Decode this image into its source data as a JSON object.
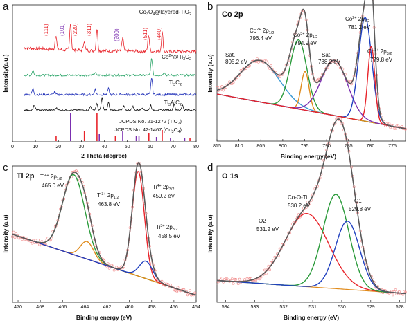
{
  "chart_data": [
    {
      "panel": "a",
      "type": "line",
      "xlabel": "2 Theta (degree)",
      "ylabel": "Intensity(a.u.)",
      "xlim": [
        0,
        80
      ],
      "xticks": [
        "0",
        "10",
        "20",
        "30",
        "40",
        "50",
        "60",
        "70",
        "80"
      ],
      "series": [
        {
          "name": "Co3O4@layered-TiO2",
          "color": "#e8232a",
          "peaks": [
            [
              18.9,
              0.55
            ],
            [
              25.3,
              1
            ],
            [
              31.2,
              0.35
            ],
            [
              36.8,
              0.8
            ],
            [
              48.0,
              0.5
            ],
            [
              59.3,
              0.6
            ],
            [
              65.2,
              0.7
            ]
          ]
        },
        {
          "name": "Co2+@Ti3C2",
          "color": "#2ea66b",
          "peaks": [
            [
              8.9,
              0.3
            ],
            [
              36.0,
              0.15
            ],
            [
              60.6,
              1
            ],
            [
              66.0,
              0.2
            ]
          ]
        },
        {
          "name": "Ti3C2",
          "color": "#1f2fb8",
          "peaks": [
            [
              8.9,
              0.35
            ],
            [
              18.3,
              0.15
            ],
            [
              36.0,
              0.3
            ],
            [
              41.8,
              0.35
            ],
            [
              60.6,
              1
            ]
          ]
        },
        {
          "name": "Ti3AlC2",
          "color": "#111111",
          "peaks": [
            [
              9.5,
              0.4
            ],
            [
              19.2,
              0.2
            ],
            [
              34.0,
              0.3
            ],
            [
              36.7,
              0.5
            ],
            [
              39.0,
              1
            ],
            [
              41.8,
              0.6
            ],
            [
              48.5,
              0.3
            ],
            [
              52.4,
              0.3
            ],
            [
              56.5,
              0.2
            ],
            [
              60.2,
              0.4
            ],
            [
              70.4,
              0.5
            ],
            [
              74.0,
              0.4
            ]
          ]
        }
      ],
      "reference_sticks": [
        {
          "name": "JCPDS No. 21-1272 (TiO2)",
          "color": "#7b2fb0",
          "positions": [
            [
              25.3,
              1
            ],
            [
              37.8,
              0.25
            ],
            [
              48.0,
              0.35
            ],
            [
              53.9,
              0.2
            ],
            [
              55.1,
              0.2
            ],
            [
              62.7,
              0.15
            ],
            [
              68.8,
              0.1
            ],
            [
              75.0,
              0.1
            ]
          ]
        },
        {
          "name": "JCPDS No. 42-1467 (Co3O4)",
          "color": "#e8232a",
          "positions": [
            [
              19.0,
              0.2
            ],
            [
              31.3,
              0.35
            ],
            [
              36.8,
              1
            ],
            [
              44.8,
              0.2
            ],
            [
              59.4,
              0.3
            ],
            [
              65.2,
              0.4
            ],
            [
              77.3,
              0.1
            ]
          ]
        }
      ],
      "annotations": {
        "miller_red": [
          "(111)",
          "(220)",
          "(311)",
          "(511)",
          "(440)"
        ],
        "miller_purple": [
          "(101)",
          "(200)"
        ]
      }
    },
    {
      "panel": "b",
      "type": "line",
      "title": "Co 2p",
      "xlabel": "Binding energy (eV)",
      "ylabel": "Intensity (a.u)",
      "xlim": [
        815,
        772
      ],
      "xticks": [
        "815",
        "810",
        "805",
        "800",
        "795",
        "790",
        "785",
        "780",
        "775"
      ],
      "peaks": [
        {
          "label": "Sat.",
          "value": "805.2 eV",
          "center": 805.2,
          "height": 0.3,
          "width": 4.5,
          "color": "#3b99d4"
        },
        {
          "label": "Co2+ 2p1/2",
          "value": "796.4 eV",
          "center": 796.4,
          "height": 0.5,
          "width": 1.9,
          "color": "#2a9a3a"
        },
        {
          "label": "Co3+ 2p1/2",
          "value": "794.9 eV",
          "center": 794.9,
          "height": 0.28,
          "width": 0.9,
          "color": "#e08a1a"
        },
        {
          "label": "Sat.",
          "value": "788.2 eV",
          "center": 788.2,
          "height": 0.4,
          "width": 3.0,
          "color": "#7b2fb0"
        },
        {
          "label": "Co2+ 2p3/2",
          "value": "781.2 eV",
          "center": 781.2,
          "height": 0.75,
          "width": 1.5,
          "color": "#1f3fbf"
        },
        {
          "label": "Co3+ 2p3/2",
          "value": "779.8 eV",
          "center": 779.8,
          "height": 0.55,
          "width": 0.8,
          "color": "#e8232a"
        }
      ]
    },
    {
      "panel": "c",
      "type": "line",
      "title": "Ti 2p",
      "xlabel": "Binding energy (eV)",
      "ylabel": "Intensity (a.u)",
      "xlim": [
        470.5,
        454
      ],
      "xticks": [
        "470",
        "468",
        "466",
        "464",
        "462",
        "460",
        "458",
        "456",
        "454"
      ],
      "peaks": [
        {
          "label": "Ti4+ 2p1/2",
          "value": "465.0 eV",
          "center": 465.0,
          "height": 0.55,
          "width": 1.0,
          "color": "#2a9a3a"
        },
        {
          "label": "Ti3+ 2p1/2",
          "value": "463.8 eV",
          "center": 463.8,
          "height": 0.12,
          "width": 0.6,
          "color": "#e08a1a"
        },
        {
          "label": "Ti4+ 2p3/2",
          "value": "459.2 eV",
          "center": 459.2,
          "height": 0.72,
          "width": 0.55,
          "color": "#e8232a"
        },
        {
          "label": "Ti3+ 2p3/2",
          "value": "458.5 eV",
          "center": 458.5,
          "height": 0.12,
          "width": 0.6,
          "color": "#1f3fbf"
        }
      ]
    },
    {
      "panel": "d",
      "type": "line",
      "title": "O 1s",
      "xlabel": "Binding energy (eV)",
      "ylabel": "Intensity (a.u)",
      "xlim": [
        534.3,
        527.8
      ],
      "xticks": [
        "534",
        "533",
        "532",
        "531",
        "530",
        "529",
        "528"
      ],
      "peaks": [
        {
          "label": "O2",
          "value": "531.2 eV",
          "center": 531.2,
          "height": 0.45,
          "width": 0.75,
          "color": "#e8232a"
        },
        {
          "label": "Co-O-Ti",
          "value": "530.2 eV",
          "center": 530.2,
          "height": 0.58,
          "width": 0.45,
          "color": "#2a9a3a"
        },
        {
          "label": "O1",
          "value": "529.8 eV",
          "center": 529.8,
          "height": 0.42,
          "width": 0.42,
          "color": "#1f3fbf"
        }
      ]
    }
  ]
}
